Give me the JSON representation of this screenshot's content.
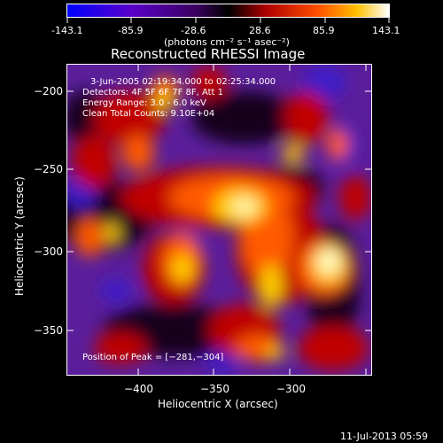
{
  "colorbar": {
    "ticks": [
      "-143.1",
      "-85.9",
      "-28.6",
      "28.6",
      "85.9",
      "143.1"
    ],
    "units": "(photons cm⁻² s⁻¹ asec⁻²)"
  },
  "chart_data": {
    "type": "heatmap",
    "title": "Reconstructed RHESSI Image",
    "xlabel": "Heliocentric X (arcsec)",
    "ylabel": "Heliocentric Y (arcsec)",
    "xlim": [
      -447,
      -247
    ],
    "ylim": [
      -385,
      -188
    ],
    "x_ticks": [
      -400,
      -350,
      -300
    ],
    "x_tick_labels": [
      "−400",
      "−350",
      "−300"
    ],
    "y_ticks": [
      -200,
      -250,
      -300,
      -350
    ],
    "y_tick_labels": [
      "−200",
      "−250",
      "−300",
      "−350"
    ],
    "value_range": [
      -143.1,
      143.1
    ],
    "peak": [
      -281,
      -304
    ],
    "annotations": [
      "3-Jun-2005 02:19:34.000 to 02:25:34.000",
      "Detectors: 4F 5F 6F 7F 8F, Att 1",
      "Energy Range: 3.0 - 6.0 keV",
      "Clean     Total Counts: 9.10E+04",
      "Position of Peak = [−281,−304]"
    ]
  },
  "footer": {
    "date": "11-Jul-2013 05:59"
  }
}
